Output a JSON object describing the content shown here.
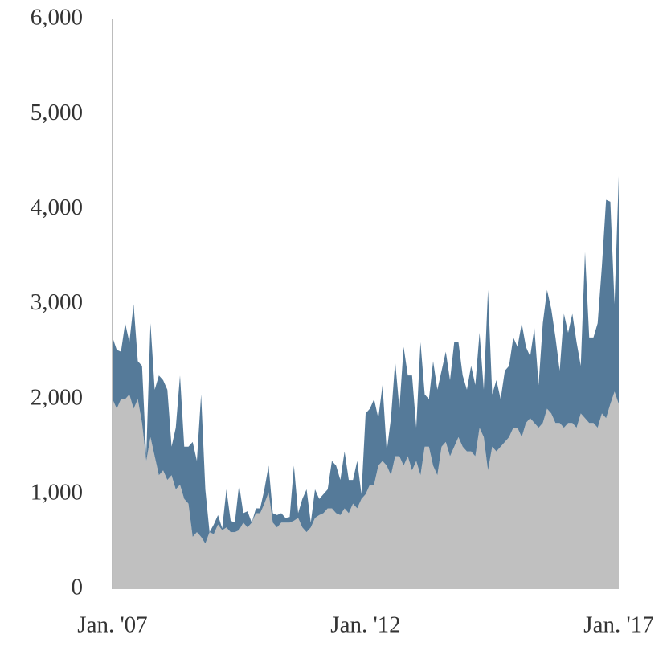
{
  "chart_data": {
    "type": "stacked_area",
    "categories": [
      "Jan. '07",
      null,
      null,
      null,
      null,
      null,
      null,
      null,
      null,
      null,
      null,
      null,
      null,
      null,
      null,
      null,
      null,
      null,
      null,
      null,
      null,
      null,
      null,
      null,
      null,
      null,
      null,
      null,
      null,
      null,
      null,
      null,
      null,
      null,
      null,
      null,
      null,
      null,
      null,
      null,
      null,
      null,
      null,
      null,
      null,
      null,
      null,
      null,
      null,
      null,
      null,
      null,
      null,
      null,
      null,
      null,
      null,
      null,
      null,
      null,
      "Jan. '12",
      null,
      null,
      null,
      null,
      null,
      null,
      null,
      null,
      null,
      null,
      null,
      null,
      null,
      null,
      null,
      null,
      null,
      null,
      null,
      null,
      null,
      null,
      null,
      null,
      null,
      null,
      null,
      null,
      null,
      null,
      null,
      null,
      null,
      null,
      null,
      null,
      null,
      null,
      null,
      null,
      null,
      null,
      null,
      null,
      null,
      null,
      null,
      null,
      null,
      null,
      null,
      null,
      null,
      null,
      null,
      null,
      null,
      null,
      null,
      "Jan. '17"
    ],
    "series": [
      {
        "color": "#c0c0c0",
        "values": [
          2000,
          1900,
          2000,
          2000,
          2050,
          1900,
          2000,
          1750,
          1350,
          1600,
          1400,
          1200,
          1250,
          1150,
          1200,
          1050,
          1100,
          950,
          900,
          550,
          600,
          550,
          480,
          600,
          580,
          680,
          620,
          650,
          600,
          600,
          620,
          700,
          650,
          700,
          800,
          800,
          900,
          1020,
          700,
          650,
          700,
          700,
          700,
          720,
          750,
          650,
          600,
          650,
          750,
          780,
          800,
          850,
          850,
          800,
          780,
          850,
          800,
          900,
          850,
          950,
          1000,
          1100,
          1100,
          1300,
          1350,
          1300,
          1200,
          1400,
          1400,
          1300,
          1400,
          1250,
          1350,
          1200,
          1500,
          1500,
          1300,
          1200,
          1500,
          1550,
          1400,
          1500,
          1600,
          1500,
          1450,
          1450,
          1400,
          1700,
          1600,
          1250,
          1500,
          1450,
          1500,
          1550,
          1600,
          1700,
          1700,
          1600,
          1750,
          1800,
          1750,
          1700,
          1750,
          1900,
          1850,
          1750,
          1750,
          1700,
          1750,
          1750,
          1700,
          1850,
          1800,
          1750,
          1750,
          1700,
          1850,
          1800,
          1950,
          2080,
          1950
        ]
      },
      {
        "color": "#557a99",
        "values": [
          650,
          620,
          500,
          800,
          550,
          1100,
          400,
          600,
          50,
          1200,
          700,
          1050,
          950,
          950,
          300,
          650,
          1150,
          550,
          600,
          1000,
          750,
          1500,
          570,
          0,
          100,
          100,
          20,
          400,
          120,
          100,
          480,
          100,
          170,
          0,
          50,
          50,
          150,
          280,
          100,
          130,
          100,
          50,
          60,
          580,
          50,
          300,
          450,
          50,
          300,
          170,
          200,
          200,
          500,
          500,
          370,
          600,
          350,
          250,
          500,
          50,
          850,
          800,
          900,
          500,
          800,
          150,
          600,
          1000,
          500,
          1250,
          850,
          1000,
          350,
          1400,
          550,
          500,
          1100,
          900,
          800,
          950,
          800,
          1100,
          1000,
          750,
          650,
          900,
          750,
          1000,
          500,
          1900,
          550,
          750,
          500,
          750,
          750,
          950,
          850,
          1200,
          800,
          650,
          1000,
          450,
          1050,
          1250,
          1100,
          900,
          550,
          1200,
          950,
          1150,
          900,
          500,
          1750,
          900,
          900,
          1100,
          1550,
          2300,
          2130,
          920,
          2400
        ]
      }
    ],
    "ylim": [
      0,
      6000
    ],
    "yticks": [
      0,
      {
        "value": 1000,
        "label": "1,000"
      },
      {
        "value": 2000,
        "label": "2,000"
      },
      {
        "value": 3000,
        "label": "3,000"
      },
      {
        "value": 4000,
        "label": "4,000"
      },
      {
        "value": 5000,
        "label": "5,000"
      },
      {
        "value": 6000,
        "label": "6,000"
      }
    ]
  }
}
